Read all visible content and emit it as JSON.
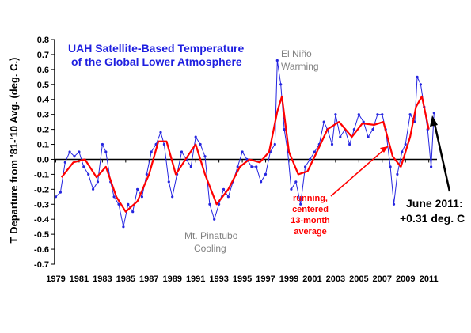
{
  "chart_data": {
    "type": "line",
    "title_lines": [
      "UAH Satellite-Based Temperature",
      "of the Global Lower Atmosphere"
    ],
    "ylabel": "T Departure from '81-'10 Avg. (deg. C.)",
    "xlabel": "",
    "ylim": [
      -0.7,
      0.8
    ],
    "xlim": [
      1978.9,
      2011.7
    ],
    "y_ticks": [
      "0.8",
      "0.7",
      "0.6",
      "0.5",
      "0.4",
      "0.3",
      "0.2",
      "0.1",
      "0.0",
      "-0.1",
      "-0.2",
      "-0.3",
      "-0.4",
      "-0.5",
      "-0.6",
      "-0.7"
    ],
    "x_ticks": [
      "1979",
      "1981",
      "1983",
      "1985",
      "1987",
      "1989",
      "1991",
      "1993",
      "1995",
      "1997",
      "1999",
      "2001",
      "2003",
      "2005",
      "2007",
      "2009",
      "2011"
    ],
    "grid": false,
    "annotations": {
      "el_nino": [
        "El Niño",
        "Warming"
      ],
      "pinatubo": [
        "Mt. Pinatubo",
        "Cooling"
      ],
      "running": [
        "running,",
        "centered",
        "13-month",
        "average"
      ],
      "june": [
        "June 2011:",
        "+0.31 deg. C"
      ]
    },
    "colors": {
      "monthly": "#2525e0",
      "average": "#ff0000",
      "title": "#1f1fe0",
      "annotation_gray": "#808080",
      "annotation_red": "#ff0000"
    },
    "series": [
      {
        "role": "monthly anomalies",
        "x": [
          1979.0,
          1979.4,
          1979.8,
          1980.2,
          1980.6,
          1981.0,
          1981.4,
          1981.8,
          1982.2,
          1982.6,
          1983.0,
          1983.3,
          1983.7,
          1984.0,
          1984.4,
          1984.8,
          1985.2,
          1985.6,
          1986.0,
          1986.4,
          1986.8,
          1987.2,
          1987.6,
          1988.0,
          1988.3,
          1988.7,
          1989.0,
          1989.4,
          1989.8,
          1990.2,
          1990.6,
          1991.0,
          1991.4,
          1991.8,
          1992.2,
          1992.6,
          1993.0,
          1993.4,
          1993.8,
          1994.2,
          1994.6,
          1995.0,
          1995.4,
          1995.8,
          1996.2,
          1996.6,
          1997.0,
          1997.4,
          1997.8,
          1998.0,
          1998.3,
          1998.6,
          1998.9,
          1999.2,
          1999.6,
          2000.0,
          2000.4,
          2000.8,
          2001.2,
          2001.6,
          2002.0,
          2002.3,
          2002.7,
          2003.0,
          2003.4,
          2003.8,
          2004.2,
          2004.6,
          2005.0,
          2005.4,
          2005.8,
          2006.2,
          2006.6,
          2007.0,
          2007.3,
          2007.7,
          2008.0,
          2008.3,
          2008.7,
          2009.0,
          2009.4,
          2009.8,
          2010.0,
          2010.3,
          2010.6,
          2010.9,
          2011.2,
          2011.45
        ],
        "y": [
          -0.25,
          -0.22,
          -0.02,
          0.05,
          0.02,
          0.05,
          -0.05,
          -0.1,
          -0.2,
          -0.15,
          0.1,
          0.05,
          -0.15,
          -0.25,
          -0.3,
          -0.45,
          -0.3,
          -0.35,
          -0.2,
          -0.25,
          -0.1,
          0.05,
          0.1,
          0.18,
          0.1,
          -0.15,
          -0.25,
          -0.1,
          0.05,
          0.0,
          -0.05,
          0.15,
          0.1,
          0.02,
          -0.3,
          -0.4,
          -0.3,
          -0.2,
          -0.25,
          -0.15,
          -0.05,
          0.05,
          0.0,
          -0.05,
          -0.05,
          -0.15,
          -0.1,
          0.05,
          0.1,
          0.66,
          0.5,
          0.2,
          0.05,
          -0.2,
          -0.15,
          -0.3,
          -0.05,
          0.0,
          0.05,
          0.1,
          0.25,
          0.2,
          0.1,
          0.3,
          0.15,
          0.2,
          0.1,
          0.2,
          0.3,
          0.25,
          0.15,
          0.2,
          0.3,
          0.3,
          0.2,
          -0.05,
          -0.3,
          -0.1,
          0.05,
          0.1,
          0.3,
          0.25,
          0.55,
          0.5,
          0.35,
          0.2,
          -0.05,
          0.31
        ]
      },
      {
        "role": "running, centered 13-month average",
        "x": [
          1979.5,
          1980.5,
          1981.5,
          1982.5,
          1983.3,
          1984.2,
          1985.0,
          1986.0,
          1987.0,
          1987.8,
          1988.5,
          1989.3,
          1990.3,
          1991.0,
          1991.8,
          1992.8,
          1993.8,
          1994.8,
          1995.6,
          1996.5,
          1997.3,
          1998.0,
          1998.4,
          1999.0,
          1999.8,
          2000.6,
          2001.4,
          2002.3,
          2003.3,
          2004.4,
          2005.3,
          2006.3,
          2007.1,
          2007.9,
          2008.6,
          2009.4,
          2009.9,
          2010.4,
          2011.0
        ],
        "y": [
          -0.12,
          -0.02,
          0.0,
          -0.12,
          -0.05,
          -0.25,
          -0.35,
          -0.28,
          -0.1,
          0.12,
          0.12,
          -0.1,
          0.02,
          0.1,
          -0.1,
          -0.3,
          -0.2,
          -0.05,
          0.0,
          -0.02,
          0.05,
          0.32,
          0.42,
          0.05,
          -0.1,
          -0.08,
          0.05,
          0.2,
          0.25,
          0.15,
          0.24,
          0.23,
          0.25,
          0.02,
          -0.05,
          0.15,
          0.35,
          0.42,
          0.2
        ]
      }
    ]
  }
}
